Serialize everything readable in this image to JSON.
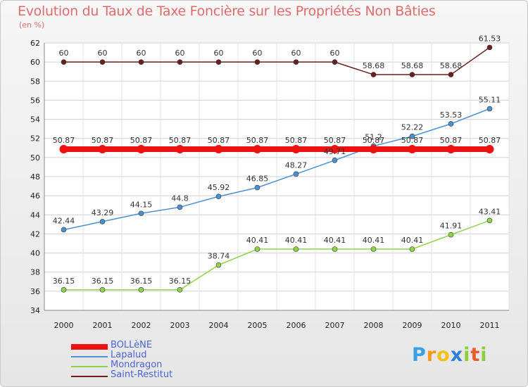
{
  "chart_data": {
    "type": "line",
    "title": "Evolution du Taux de Taxe Foncière sur les Propriétés Non Bâties",
    "subtitle": "(en %)",
    "x": [
      "2000",
      "2001",
      "2002",
      "2003",
      "2004",
      "2005",
      "2006",
      "2007",
      "2008",
      "2009",
      "2010",
      "2011"
    ],
    "ylim": [
      34,
      62
    ],
    "yticks": [
      34,
      36,
      38,
      40,
      42,
      44,
      46,
      48,
      50,
      52,
      54,
      56,
      58,
      60,
      62
    ],
    "grid": true,
    "legend_position": "bottom-left",
    "series": [
      {
        "name": "BOLLèNE",
        "color": "#ee1111",
        "values": [
          50.87,
          50.87,
          50.87,
          50.87,
          50.87,
          50.87,
          50.87,
          50.87,
          50.87,
          50.87,
          50.87,
          50.87
        ],
        "labels": [
          "50.87",
          "50.87",
          "50.87",
          "50.87",
          "50.87",
          "50.87",
          "50.87",
          "50.87",
          "50.87",
          "50.87",
          "50.87",
          "50.87"
        ]
      },
      {
        "name": "Lapalud",
        "color": "#4b90cf",
        "values": [
          42.44,
          43.29,
          44.15,
          44.8,
          45.92,
          46.85,
          48.27,
          49.71,
          51.2,
          52.22,
          53.53,
          55.11
        ],
        "labels": [
          "42.44",
          "43.29",
          "44.15",
          "44.8",
          "45.92",
          "46.85",
          "48.27",
          "49.71",
          "51.2",
          "52.22",
          "53.53",
          "55.11"
        ]
      },
      {
        "name": "Mondragon",
        "color": "#8ed44a",
        "values": [
          36.15,
          36.15,
          36.15,
          36.15,
          38.74,
          40.41,
          40.41,
          40.41,
          40.41,
          40.41,
          41.91,
          43.41
        ],
        "labels": [
          "36.15",
          "36.15",
          "36.15",
          "36.15",
          "38.74",
          "40.41",
          "40.41",
          "40.41",
          "40.41",
          "40.41",
          "41.91",
          "43.41"
        ]
      },
      {
        "name": "Saint-Restitut",
        "color": "#6b1f1f",
        "values": [
          60,
          60,
          60,
          60,
          60,
          60,
          60,
          60,
          58.68,
          58.68,
          58.68,
          61.53
        ],
        "labels": [
          "60",
          "60",
          "60",
          "60",
          "60",
          "60",
          "60",
          "60",
          "58.68",
          "58.68",
          "58.68",
          "61.53"
        ]
      }
    ]
  },
  "logo": {
    "letters": [
      {
        "ch": "P",
        "color": "#3aa0e0"
      },
      {
        "ch": "r",
        "color": "#f29a1a"
      },
      {
        "ch": "o",
        "color": "#f2c21a"
      },
      {
        "ch": "x",
        "color": "#2f7fd8"
      },
      {
        "ch": "i",
        "color": "#8ccf3a"
      },
      {
        "ch": "t",
        "color": "#ea5a2a"
      },
      {
        "ch": "i",
        "color": "#8ccf3a"
      }
    ]
  }
}
